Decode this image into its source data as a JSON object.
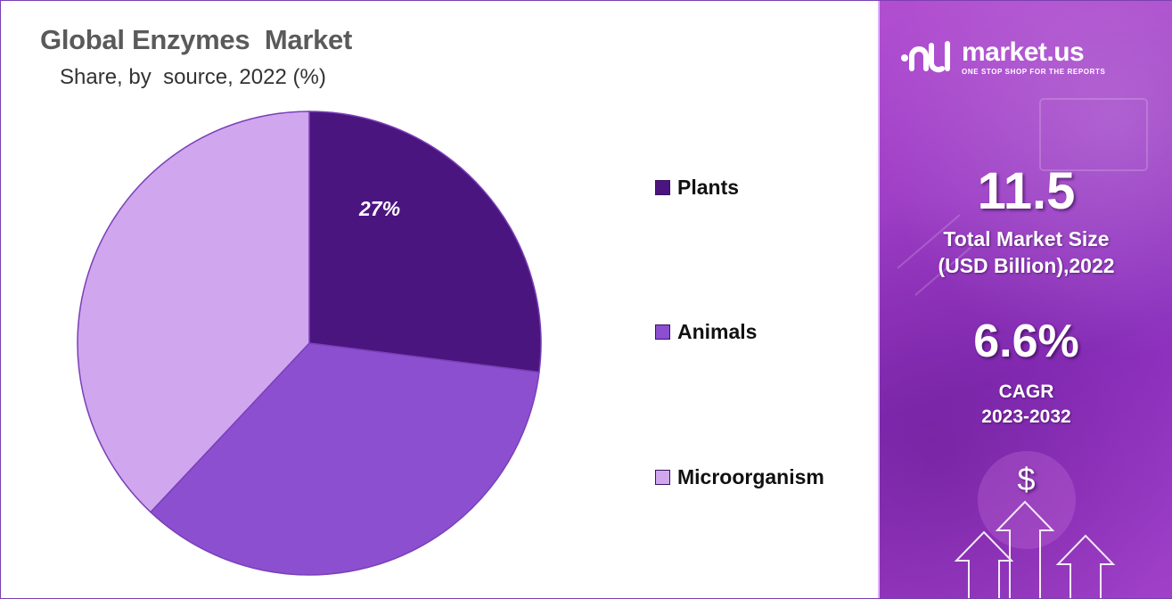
{
  "chart_data": {
    "type": "pie",
    "title": "Global Enzymes  Market",
    "subtitle": "Share, by  source, 2022 (%)",
    "slices": [
      {
        "label": "Plants",
        "value": 27,
        "color": "#4b1580",
        "data_label": "27%"
      },
      {
        "label": "Animals",
        "value": 35,
        "color": "#8c4fd0",
        "data_label": ""
      },
      {
        "label": "Microorganism",
        "value": 38,
        "color": "#d0a6ee",
        "data_label": ""
      }
    ],
    "legend_position": "right",
    "start_angle": "top, clockwise"
  },
  "legend": [
    {
      "label": "Plants",
      "color": "#4b1580"
    },
    {
      "label": "Animals",
      "color": "#8c4fd0"
    },
    {
      "label": "Microorganism",
      "color": "#d0a6ee"
    }
  ],
  "side_panel": {
    "brand_name": "market.us",
    "brand_tagline": "ONE STOP SHOP FOR THE REPORTS",
    "market_size_value": "11.5",
    "market_size_label_1": "Total Market Size",
    "market_size_label_2": "(USD Billion),2022",
    "cagr_value": "6.6%",
    "cagr_label_1": "CAGR",
    "cagr_label_2": "2023-2032",
    "dollar_symbol": "$",
    "icons": [
      "dollar-icon",
      "arrow-up-icon"
    ]
  }
}
